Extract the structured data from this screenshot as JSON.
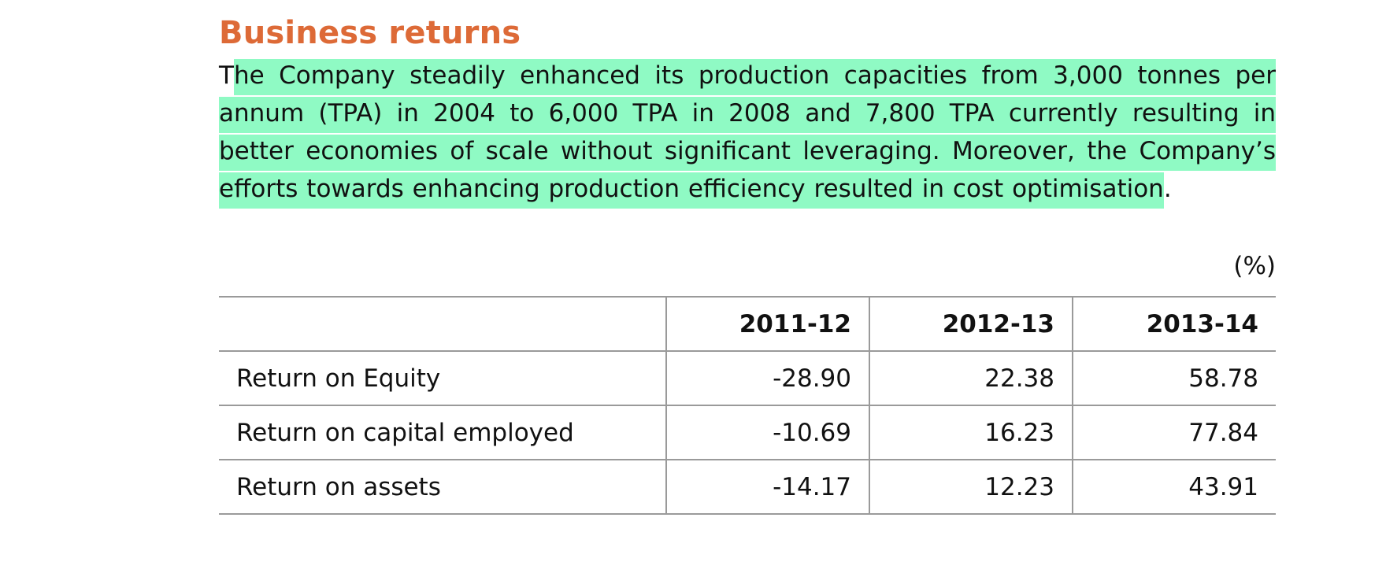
{
  "heading": "Business returns",
  "paragraph": {
    "first_letter": "T",
    "highlighted": "he Company steadily enhanced its production capacities from 3,000 tonnes per annum (TPA) in 2004 to 6,000 TPA in 2008 and 7,800 TPA currently resulting in better economies of scale without significant leveraging. Moreover, the Company’s efforts towards enhancing production efficiency resulted in cost optimisation",
    "trailing": "."
  },
  "table": {
    "unit": "(%)",
    "columns": [
      "",
      "2011-12",
      "2012-13",
      "2013-14"
    ],
    "rows": [
      {
        "label": "Return on Equity",
        "values": [
          "-28.90",
          "22.38",
          "58.78"
        ]
      },
      {
        "label": "Return on capital employed",
        "values": [
          "-10.69",
          "16.23",
          "77.84"
        ]
      },
      {
        "label": "Return on assets",
        "values": [
          "-14.17",
          "12.23",
          "43.91"
        ]
      }
    ]
  },
  "colors": {
    "heading": "#dd6a37",
    "highlight": "#8ffac4",
    "rule": "#9a9a9a"
  }
}
